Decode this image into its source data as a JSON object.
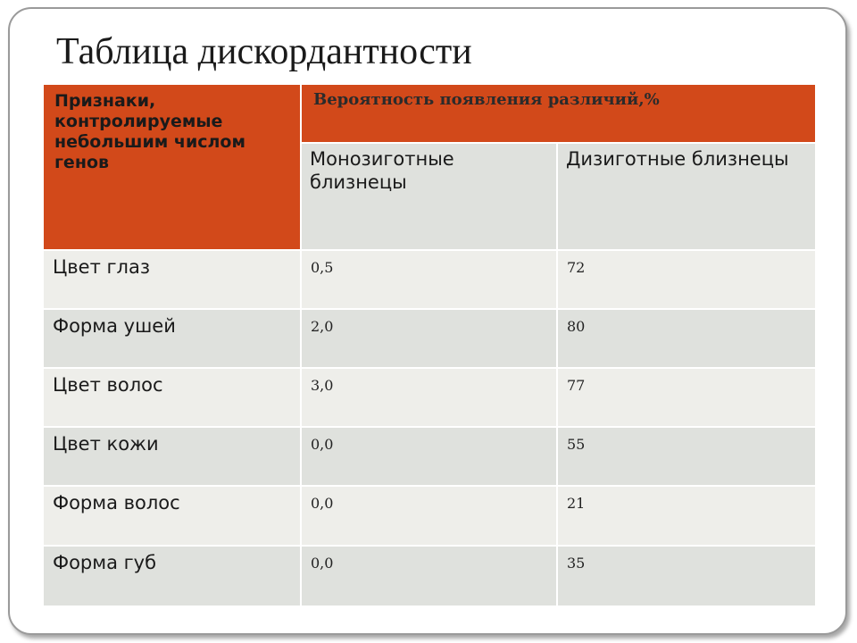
{
  "title": "Таблица дискордантности",
  "table": {
    "header": {
      "traits_label": "Признаки, контролируемые небольшим числом генов",
      "probability_label": "Вероятность появления различий,%",
      "mono_label": "Монозиготные близнецы",
      "di_label": "Дизиготные близнецы"
    },
    "rows": [
      {
        "trait": "Цвет глаз",
        "mono": "0,5",
        "di": "72"
      },
      {
        "trait": "Форма ушей",
        "mono": "2,0",
        "di": "80"
      },
      {
        "trait": "Цвет волос",
        "mono": "3,0",
        "di": "77"
      },
      {
        "trait": "Цвет кожи",
        "mono": "0,0",
        "di": "55"
      },
      {
        "trait": "Форма волос",
        "mono": "0,0",
        "di": "21"
      },
      {
        "trait": "Форма губ",
        "mono": "0,0",
        "di": "35"
      }
    ]
  },
  "colors": {
    "header_accent": "#d2491a",
    "row_light": "#eeeeea",
    "row_dark": "#dfe1dd"
  }
}
